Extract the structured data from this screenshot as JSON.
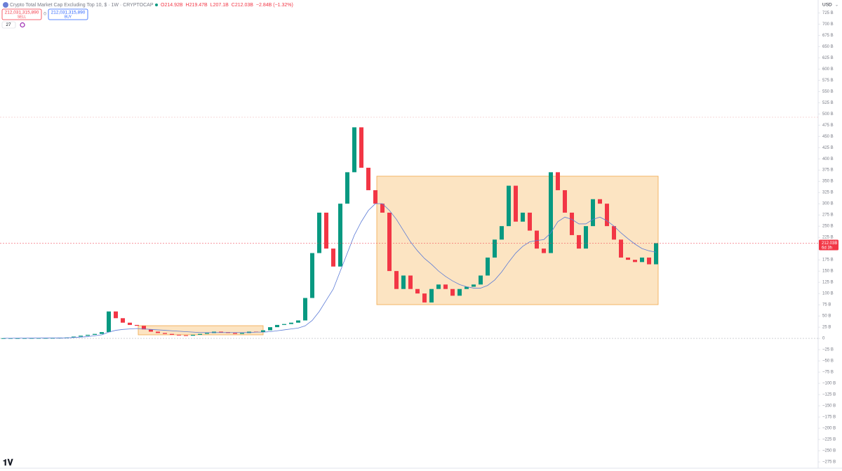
{
  "header": {
    "title": "Crypto Total Market Cap Excluding Top 10, $ · 1W · CRYPTOCAP",
    "ohlc": [
      "O214.92B",
      "H219.47B",
      "L207.1B",
      "C212.03B",
      "−2.84B (−1.32%)"
    ],
    "sell": {
      "price": "212,031,315,890",
      "label": "SELL"
    },
    "spread": "0",
    "buy": {
      "price": "212,031,315,890",
      "label": "BUY"
    },
    "indicators": "27",
    "currency": "USD"
  },
  "chart_data": {
    "type": "candlestick",
    "close": [
      0.5,
      0.6,
      0.6,
      0.7,
      0.8,
      1,
      1,
      1.2,
      1.5,
      2,
      4,
      6,
      8,
      10,
      14,
      60,
      45,
      35,
      30,
      28,
      20,
      15,
      12,
      10,
      8,
      7,
      6,
      8,
      10,
      12,
      15,
      14,
      12,
      10,
      12,
      15,
      14,
      18,
      25,
      30,
      32,
      35,
      40,
      90,
      190,
      280,
      200,
      160,
      300,
      370,
      470,
      380,
      330,
      300,
      280,
      150,
      110,
      140,
      110,
      100,
      80,
      110,
      120,
      110,
      95,
      110,
      115,
      120,
      140,
      180,
      220,
      250,
      340,
      260,
      280,
      240,
      200,
      190,
      370,
      330,
      280,
      230,
      200,
      250,
      310,
      300,
      250,
      220,
      180,
      175,
      170,
      180,
      165,
      212.03
    ],
    "ma": [
      0.3,
      0.4,
      0.5,
      0.5,
      0.6,
      0.7,
      0.8,
      0.9,
      1,
      1.2,
      2,
      3,
      4,
      6,
      8,
      14,
      18,
      20,
      21,
      22,
      21,
      20,
      19,
      18,
      17,
      16,
      15,
      14,
      13,
      13,
      13,
      13,
      13,
      13,
      13,
      13,
      14,
      14,
      15,
      17,
      19,
      21,
      23,
      28,
      40,
      60,
      85,
      110,
      150,
      190,
      230,
      260,
      285,
      300,
      300,
      285,
      265,
      240,
      215,
      195,
      178,
      165,
      150,
      138,
      128,
      120,
      115,
      112,
      112,
      118,
      130,
      148,
      170,
      190,
      205,
      215,
      218,
      220,
      235,
      260,
      270,
      265,
      255,
      255,
      265,
      270,
      262,
      250,
      235,
      222,
      210,
      200,
      195,
      192
    ],
    "up_color": "#089981",
    "down_color": "#f23645",
    "ma_color": "#5b7bd6",
    "last_price": {
      "value": 212.03,
      "label": "212.03B"
    },
    "countdown": "6d 3h",
    "ylim": [
      -289,
      741
    ],
    "yticks": [
      {
        "value": 725,
        "label": "725 B"
      },
      {
        "value": 700,
        "label": "700 B"
      },
      {
        "value": 675,
        "label": "675 B"
      },
      {
        "value": 650,
        "label": "650 B"
      },
      {
        "value": 625,
        "label": "625 B"
      },
      {
        "value": 600,
        "label": "600 B"
      },
      {
        "value": 575,
        "label": "575 B"
      },
      {
        "value": 550,
        "label": "550 B"
      },
      {
        "value": 525,
        "label": "525 B"
      },
      {
        "value": 500,
        "label": "500 B"
      },
      {
        "value": 475,
        "label": "475 B"
      },
      {
        "value": 450,
        "label": "450 B"
      },
      {
        "value": 425,
        "label": "425 B"
      },
      {
        "value": 400,
        "label": "400 B"
      },
      {
        "value": 375,
        "label": "375 B"
      },
      {
        "value": 350,
        "label": "350 B"
      },
      {
        "value": 325,
        "label": "325 B"
      },
      {
        "value": 300,
        "label": "300 B"
      },
      {
        "value": 275,
        "label": "275 B"
      },
      {
        "value": 250,
        "label": "250 B"
      },
      {
        "value": 225,
        "label": "225 B"
      },
      {
        "value": 175,
        "label": "175 B"
      },
      {
        "value": 150,
        "label": "150 B"
      },
      {
        "value": 125,
        "label": "125 B"
      },
      {
        "value": 100,
        "label": "100 B"
      },
      {
        "value": 75,
        "label": "75 B"
      },
      {
        "value": 50,
        "label": "50 B"
      },
      {
        "value": 25,
        "label": "25 B"
      },
      0,
      {
        "value": -25,
        "label": "−25 B"
      },
      {
        "value": -50,
        "label": "−50 B"
      },
      {
        "value": -75,
        "label": "−75 B"
      },
      {
        "value": -100,
        "label": "−100 B"
      },
      {
        "value": -125,
        "label": "−125 B"
      },
      {
        "value": -150,
        "label": "−150 B"
      },
      {
        "value": -175,
        "label": "−175 B"
      },
      {
        "value": -200,
        "label": "−200 B"
      },
      {
        "value": -225,
        "label": "−225 B"
      },
      {
        "value": -250,
        "label": "−250 B"
      },
      {
        "value": -275,
        "label": "−275 B"
      }
    ]
  }
}
